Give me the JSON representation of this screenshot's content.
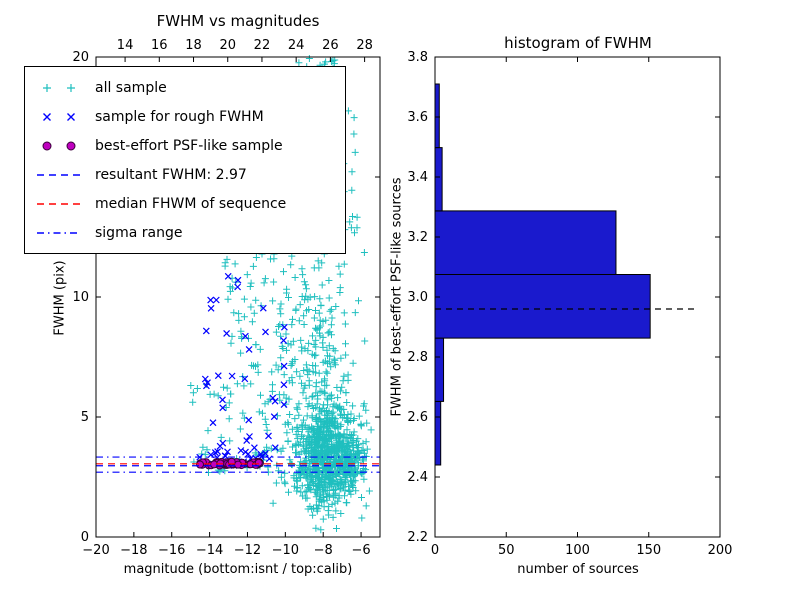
{
  "chart_data": [
    {
      "type": "scatter",
      "title": "FWHM vs magnitudes",
      "xlabel": "magnitude (bottom:isnt / top:calib)",
      "ylabel": "FWHM (pix)",
      "xlim": [
        -20,
        -5
      ],
      "ylim": [
        0,
        20
      ],
      "xticks": {
        "values": [
          -20,
          -18,
          -16,
          -14,
          -12,
          -10,
          -8,
          -6
        ],
        "labels": [
          "−20",
          "−18",
          "−16",
          "−14",
          "−12",
          "−10",
          "−8",
          "−6"
        ]
      },
      "yticks": {
        "values": [
          0,
          5,
          10,
          15,
          20
        ],
        "labels": [
          "0",
          "5",
          "10",
          "15",
          "20"
        ]
      },
      "top_axis": {
        "xlim": [
          12.3,
          28.9
        ],
        "ticks": {
          "values": [
            14,
            16,
            18,
            20,
            22,
            24,
            26,
            28
          ],
          "labels": [
            "14",
            "16",
            "18",
            "20",
            "22",
            "24",
            "26",
            "28"
          ]
        }
      },
      "series": [
        {
          "name": "all sample",
          "marker": "+",
          "color": "#1fbfbf",
          "clusters": [
            {
              "cx": -7.9,
              "cy": 3.4,
              "sx": 0.85,
              "sy": 1.1,
              "n": 750
            },
            {
              "cx": -8.3,
              "cy": 7.5,
              "sx": 1.0,
              "sy": 2.3,
              "n": 200
            },
            {
              "x": [
                -13.2,
                -9.6
              ],
              "y": [
                2.6,
                13.0
              ],
              "n": 130
            },
            {
              "x": [
                -15.0,
                -13.0
              ],
              "y": [
                2.6,
                6.5
              ],
              "n": 22
            },
            {
              "x": [
                -10.2,
                -6.2
              ],
              "y": [
                12.5,
                18.5
              ],
              "n": 70
            },
            {
              "x": [
                -9.8,
                -7.3
              ],
              "y": [
                18.3,
                20.0
              ],
              "n": 28
            },
            {
              "cx": -6.6,
              "cy": 3.0,
              "sx": 0.45,
              "sy": 0.5,
              "n": 150
            }
          ]
        },
        {
          "name": "sample for rough FWHM",
          "marker": "x",
          "color": "#0000ff",
          "clusters": [
            {
              "x": [
                -14.4,
                -9.9
              ],
              "y": [
                3.1,
                12.9
              ],
              "n": 48
            },
            {
              "cx": -12.8,
              "cy": 3.3,
              "sx": 1.0,
              "sy": 0.25,
              "n": 22
            }
          ]
        },
        {
          "name": "best-effort PSF-like sample",
          "marker": "o",
          "color": "#bf00bf",
          "edge": "#3a003a",
          "clusters": [
            {
              "x": [
                -14.7,
                -11.3
              ],
              "y": [
                2.98,
                3.14
              ],
              "n": 58
            }
          ]
        }
      ],
      "hlines": [
        {
          "name": "resultant FWHM",
          "y": 2.97,
          "color": "#0000ff",
          "dash": "dashed"
        },
        {
          "name": "median FHWM of sequence",
          "y": 3.05,
          "color": "#ff0000",
          "dash": "dashed"
        },
        {
          "name": "sigma range upper",
          "y": 3.33,
          "color": "#0000ff",
          "dash": "dashdot"
        },
        {
          "name": "sigma range lower",
          "y": 2.7,
          "color": "#0000ff",
          "dash": "dashdot"
        }
      ],
      "legend": {
        "items": [
          {
            "label": "all sample",
            "type": "marker",
            "marker": "+",
            "color": "#1fbfbf"
          },
          {
            "label": "sample for rough FWHM",
            "type": "marker",
            "marker": "x",
            "color": "#0000ff"
          },
          {
            "label": "best-effort PSF-like sample",
            "type": "marker",
            "marker": "o",
            "color": "#bf00bf",
            "edge": "#3a003a"
          },
          {
            "label": "resultant FWHM: 2.97",
            "type": "line",
            "color": "#0000ff",
            "dash": "dashed"
          },
          {
            "label": "median FHWM of sequence",
            "type": "line",
            "color": "#ff0000",
            "dash": "dashed"
          },
          {
            "label": "sigma range",
            "type": "line",
            "color": "#0000ff",
            "dash": "dashdot"
          }
        ]
      }
    },
    {
      "type": "bar",
      "orientation": "horizontal",
      "title": "histogram of FWHM",
      "xlabel": "number of sources",
      "ylabel": "FWHM of best-effort PSF-like sources",
      "xlim": [
        0,
        200
      ],
      "ylim": [
        2.2,
        3.8
      ],
      "xticks": {
        "values": [
          0,
          50,
          100,
          150,
          200
        ],
        "labels": [
          "0",
          "50",
          "100",
          "150",
          "200"
        ]
      },
      "yticks": {
        "values": [
          2.2,
          2.4,
          2.6,
          2.8,
          3.0,
          3.2,
          3.4,
          3.6,
          3.8
        ],
        "labels": [
          "2.2",
          "2.4",
          "2.6",
          "2.8",
          "3.0",
          "3.2",
          "3.4",
          "3.6",
          "3.8"
        ]
      },
      "bins": {
        "edges": [
          2.44,
          2.652,
          2.863,
          3.075,
          3.287,
          3.498,
          3.71
        ],
        "counts": [
          4,
          6,
          151,
          127,
          5,
          3
        ]
      },
      "bar_color": "#1a1acd",
      "bar_edge_color": "#000000",
      "dashed_line": {
        "y": 2.96,
        "x_end": 184,
        "color": "#000000"
      }
    }
  ]
}
